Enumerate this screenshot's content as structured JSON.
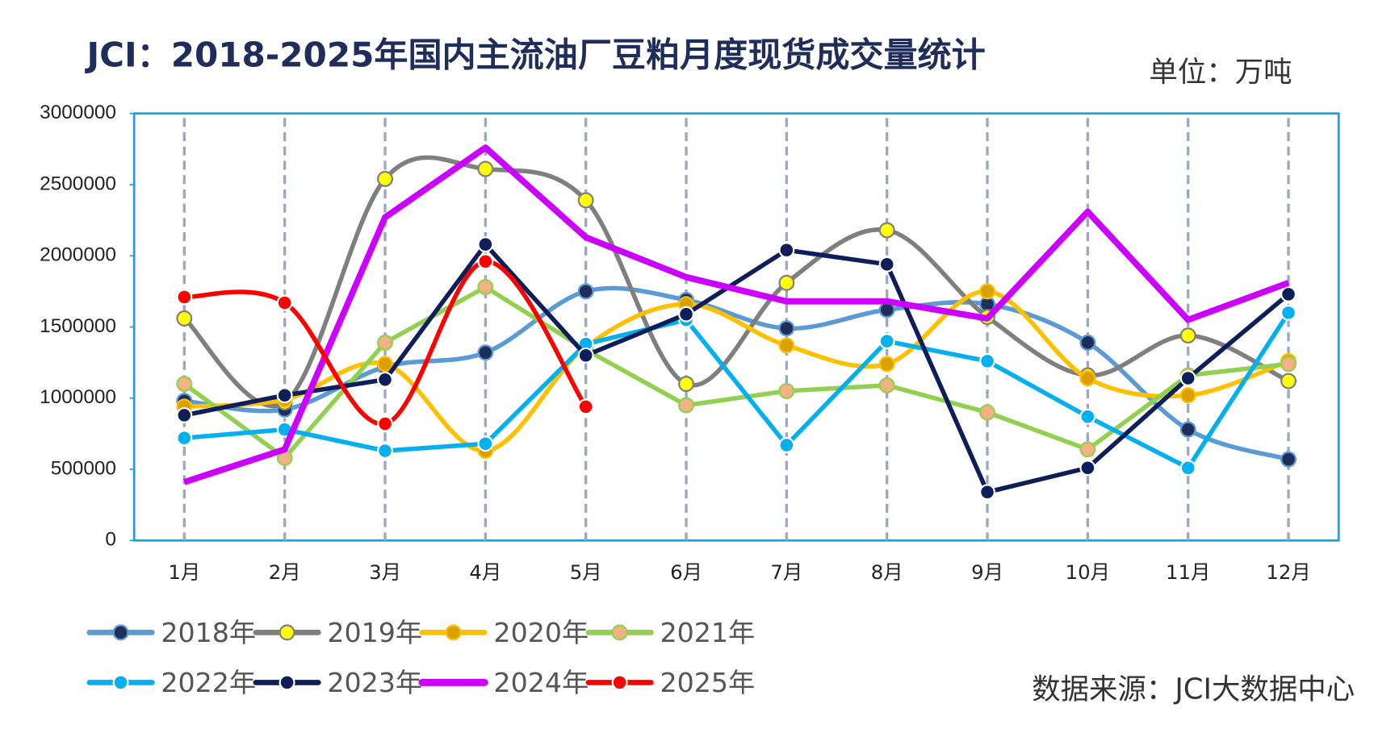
{
  "chart_data": {
    "type": "line",
    "title": "JCI：2018-2025年国内主流油厂豆粕月度现货成交量统计",
    "unit": "单位：万吨",
    "source": "数据来源：JCI大数据中心",
    "categories": [
      "1月",
      "2月",
      "3月",
      "4月",
      "5月",
      "6月",
      "7月",
      "8月",
      "9月",
      "10月",
      "11月",
      "12月"
    ],
    "ylim": [
      0,
      3000000
    ],
    "yticks": [
      0,
      500000,
      1000000,
      1500000,
      2000000,
      2500000,
      3000000
    ],
    "series": [
      {
        "name": "2018年",
        "color": "#5b9bd5",
        "marker_color": "#1f2d5a",
        "smooth": true,
        "values": [
          980000,
          920000,
          1220000,
          1320000,
          1750000,
          1690000,
          1490000,
          1620000,
          1660000,
          1390000,
          780000,
          570000
        ]
      },
      {
        "name": "2019年",
        "color": "#7f7f7f",
        "marker_color": "#ffff00",
        "smooth": true,
        "values": [
          1560000,
          970000,
          2540000,
          2610000,
          2390000,
          1100000,
          1810000,
          2180000,
          1570000,
          1160000,
          1440000,
          1120000
        ]
      },
      {
        "name": "2020年",
        "color": "#ffc000",
        "marker_color": "#d9a000",
        "smooth": true,
        "values": [
          940000,
          990000,
          1240000,
          630000,
          1360000,
          1660000,
          1370000,
          1240000,
          1750000,
          1140000,
          1020000,
          1260000
        ]
      },
      {
        "name": "2021年",
        "color": "#92d050",
        "marker_color": "#f4b183",
        "smooth": false,
        "values": [
          1100000,
          580000,
          1390000,
          1780000,
          1340000,
          950000,
          1050000,
          1090000,
          900000,
          640000,
          1160000,
          1240000
        ]
      },
      {
        "name": "2022年",
        "color": "#00b0f0",
        "marker_color": "#00b0f0",
        "smooth": false,
        "values": [
          720000,
          780000,
          630000,
          680000,
          1380000,
          1550000,
          670000,
          1400000,
          1260000,
          870000,
          510000,
          1600000
        ]
      },
      {
        "name": "2023年",
        "color": "#0d1e5a",
        "marker_color": "#0d1e5a",
        "smooth": false,
        "values": [
          880000,
          1020000,
          1130000,
          2080000,
          1300000,
          1590000,
          2040000,
          1940000,
          340000,
          510000,
          1140000,
          1730000
        ]
      },
      {
        "name": "2024年",
        "color": "#cc00ff",
        "marker_color": null,
        "smooth": false,
        "values": [
          410000,
          640000,
          2270000,
          2760000,
          2130000,
          1850000,
          1680000,
          1680000,
          1560000,
          2310000,
          1550000,
          1810000
        ]
      },
      {
        "name": "2025年",
        "color": "#ff0000",
        "marker_color": "#ff0000",
        "smooth": true,
        "values": [
          1710000,
          1670000,
          820000,
          1960000,
          940000,
          null,
          null,
          null,
          null,
          null,
          null,
          null
        ]
      }
    ]
  }
}
